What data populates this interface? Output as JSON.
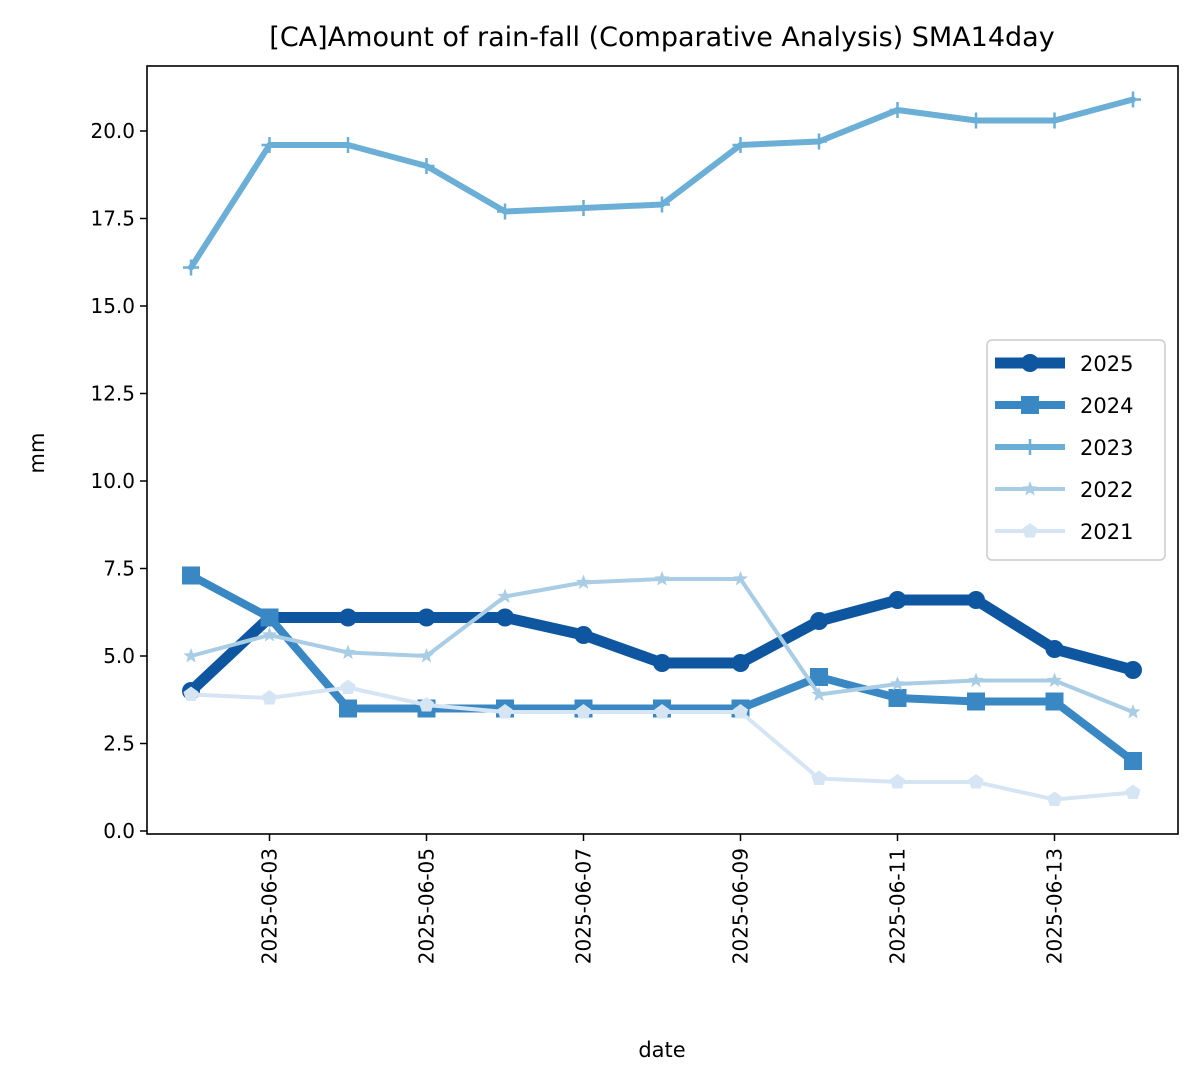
{
  "chart_data": {
    "type": "line",
    "title": "[CA]Amount of rain-fall (Comparative Analysis) SMA14day",
    "xlabel": "date",
    "ylabel": "mm",
    "x": [
      "2025-06-02",
      "2025-06-03",
      "2025-06-04",
      "2025-06-05",
      "2025-06-06",
      "2025-06-07",
      "2025-06-08",
      "2025-06-09",
      "2025-06-10",
      "2025-06-11",
      "2025-06-12",
      "2025-06-13",
      "2025-06-14"
    ],
    "xticks": [
      "2025-06-03",
      "2025-06-05",
      "2025-06-07",
      "2025-06-09",
      "2025-06-11",
      "2025-06-13"
    ],
    "ylim": [
      0,
      22
    ],
    "yticks": [
      "0.0",
      "2.5",
      "5.0",
      "7.5",
      "10.0",
      "12.5",
      "15.0",
      "17.5",
      "20.0"
    ],
    "legend_position": "center-right",
    "grid": false,
    "series": [
      {
        "name": "2025",
        "color": "#0f56a0",
        "marker": "circle",
        "values": [
          4.0,
          6.1,
          6.1,
          6.1,
          6.1,
          5.6,
          4.8,
          4.8,
          6.0,
          6.6,
          6.6,
          5.2,
          4.6
        ]
      },
      {
        "name": "2024",
        "color": "#3a88c3",
        "marker": "square",
        "values": [
          7.3,
          6.1,
          3.5,
          3.5,
          3.5,
          3.5,
          3.5,
          3.5,
          4.4,
          3.8,
          3.7,
          3.7,
          2.0
        ]
      },
      {
        "name": "2023",
        "color": "#6baed6",
        "marker": "plus",
        "values": [
          16.1,
          19.6,
          19.6,
          19.0,
          17.7,
          17.8,
          17.9,
          19.6,
          19.7,
          20.6,
          20.3,
          20.3,
          20.9
        ]
      },
      {
        "name": "2022",
        "color": "#a9cde4",
        "marker": "star",
        "values": [
          5.0,
          5.6,
          5.1,
          5.0,
          6.7,
          7.1,
          7.2,
          7.2,
          3.9,
          4.2,
          4.3,
          4.3,
          3.4
        ]
      },
      {
        "name": "2021",
        "color": "#d5e5f4",
        "marker": "pentagon",
        "values": [
          3.9,
          3.8,
          4.1,
          3.6,
          3.4,
          3.4,
          3.4,
          3.4,
          1.5,
          1.4,
          1.4,
          0.9,
          1.1
        ]
      }
    ]
  }
}
